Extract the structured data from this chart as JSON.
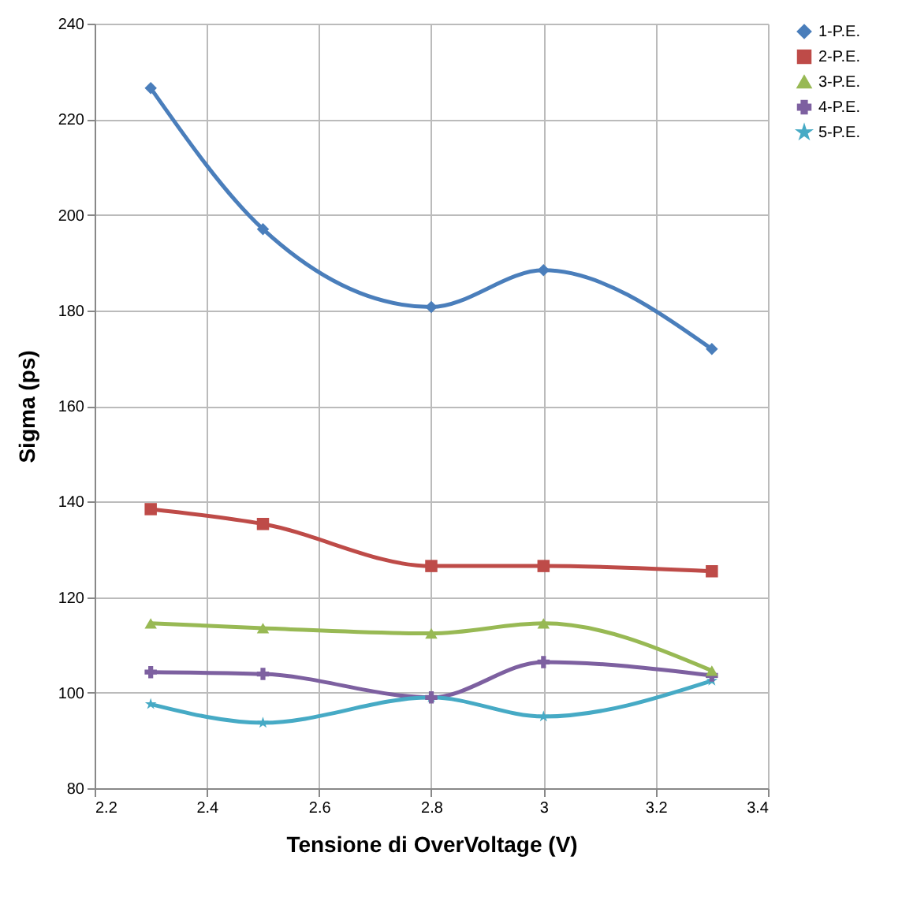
{
  "chart_data": {
    "type": "line",
    "xlabel": "Tensione di OverVoltage (V)",
    "ylabel": "Sigma (ps)",
    "x": [
      2.3,
      2.5,
      2.8,
      3.0,
      3.3
    ],
    "series": [
      {
        "name": "1-P.E.",
        "color": "#4a7ebb",
        "marker": "diamond",
        "values": [
          226.5,
          197,
          180.7,
          188.4,
          171.9
        ]
      },
      {
        "name": "2-P.E.",
        "color": "#be4b48",
        "marker": "square",
        "values": [
          138.4,
          135.3,
          126.5,
          126.5,
          125.4
        ]
      },
      {
        "name": "3-P.E.",
        "color": "#98b954",
        "marker": "triangle",
        "values": [
          114.5,
          113.5,
          112.4,
          114.5,
          104.6
        ]
      },
      {
        "name": "4-P.E.",
        "color": "#7d60a0",
        "marker": "cross",
        "values": [
          104.3,
          103.9,
          99,
          106.4,
          103.6
        ]
      },
      {
        "name": "5-P.E.",
        "color": "#46aac5",
        "marker": "star",
        "values": [
          97.6,
          93.7,
          99,
          95,
          102.5
        ]
      }
    ],
    "xlim": [
      2.2,
      3.4
    ],
    "xticks": [
      2.2,
      2.4,
      2.6,
      2.8,
      3,
      3.2,
      3.4
    ],
    "ylim": [
      80,
      240
    ],
    "yticks": [
      80,
      100,
      120,
      140,
      160,
      180,
      200,
      220,
      240
    ],
    "grid": true,
    "legend": "right",
    "line_style": "solid"
  }
}
